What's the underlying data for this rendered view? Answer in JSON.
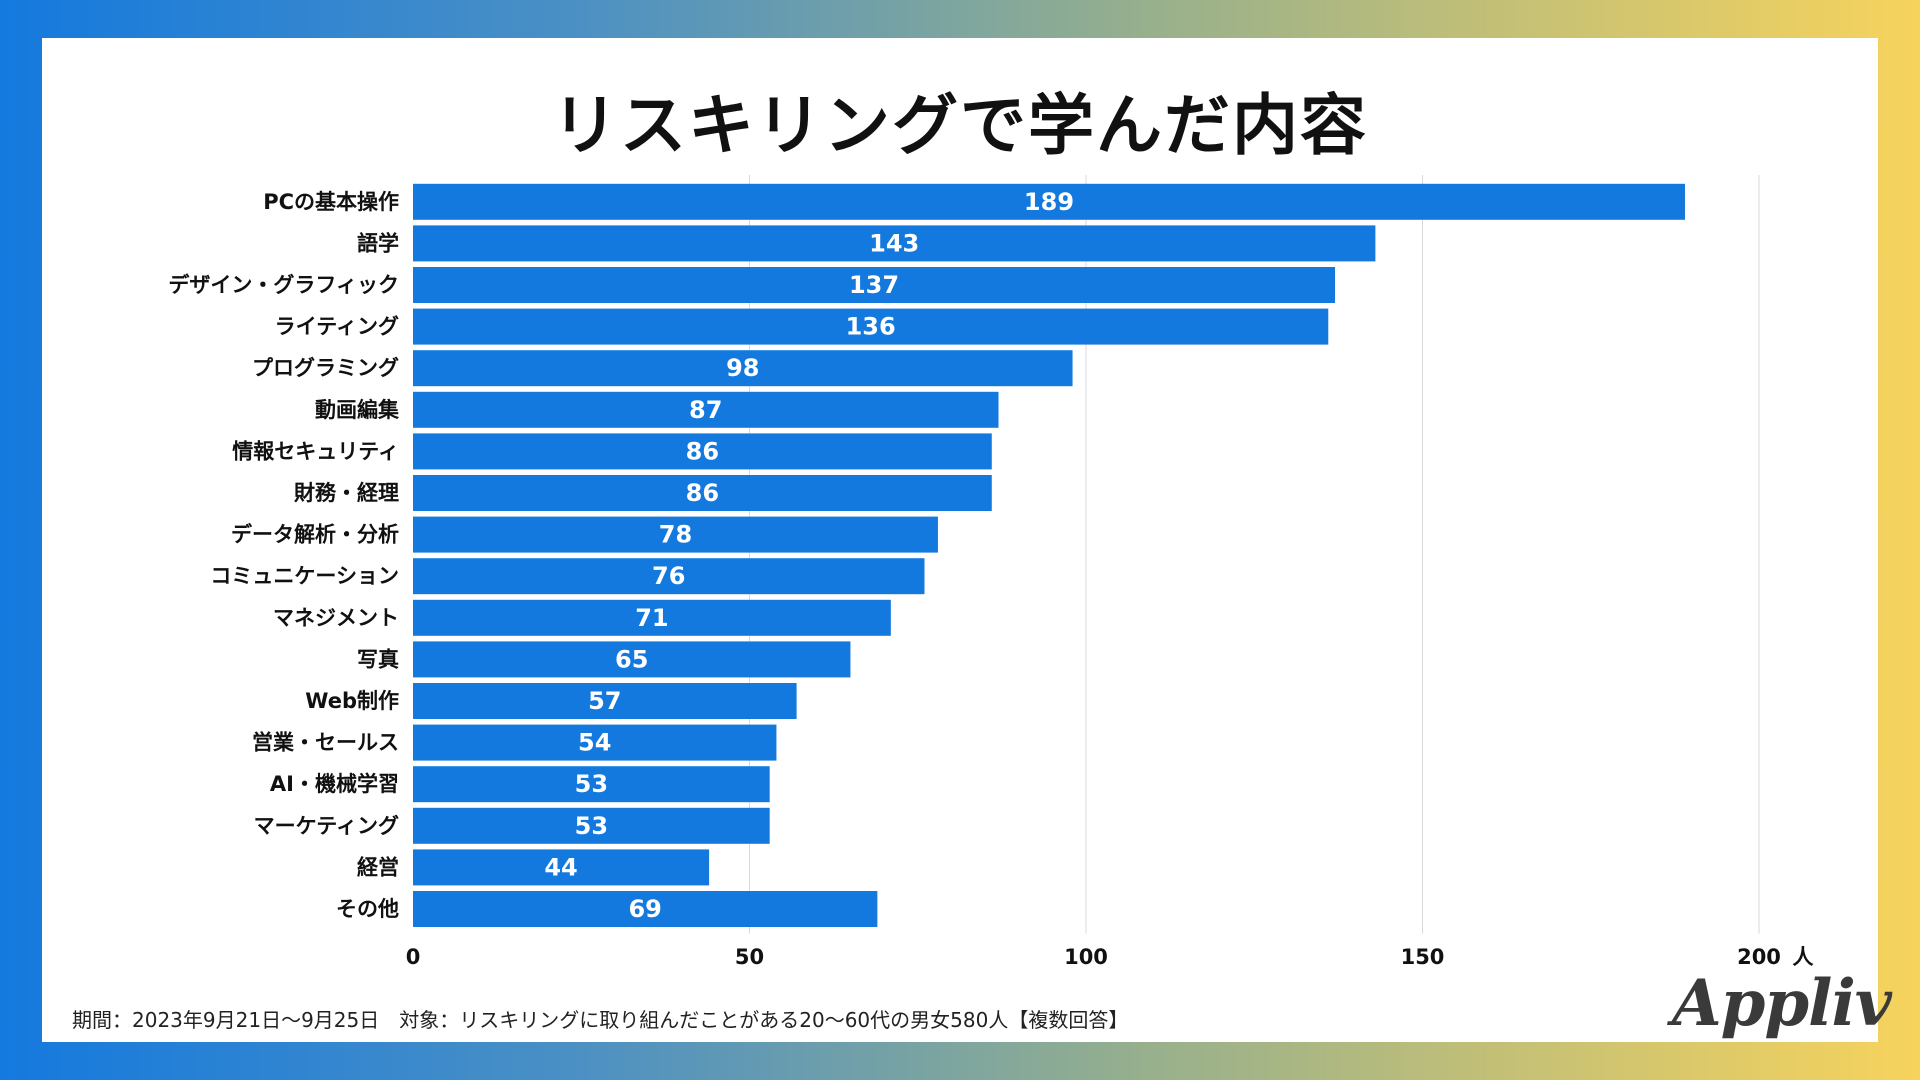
{
  "footer_text": "期間：2023年9月21日〜9月25日　対象：リスキリングに取り組んだことがある20〜60代の男女580人【複数回答】",
  "logo_text": "Appliv",
  "colors": {
    "bar": "#1479de",
    "bar_label": "#ffffff",
    "grid": "#d9d9d9",
    "text": "#111111"
  },
  "chart_data": {
    "type": "bar",
    "orientation": "horizontal",
    "title": "リスキリングで学んだ内容",
    "categories": [
      "PCの基本操作",
      "語学",
      "デザイン・グラフィック",
      "ライティング",
      "プログラミング",
      "動画編集",
      "情報セキュリティ",
      "財務・経理",
      "データ解析・分析",
      "コミュニケーション",
      "マネジメント",
      "写真",
      "Web制作",
      "営業・セールス",
      "AI・機械学習",
      "マーケティング",
      "経営",
      "その他"
    ],
    "values": [
      189,
      143,
      137,
      136,
      98,
      87,
      86,
      86,
      78,
      76,
      71,
      65,
      57,
      54,
      53,
      53,
      44,
      69
    ],
    "xlim": [
      0,
      200
    ],
    "xticks": [
      0,
      50,
      100,
      150,
      200
    ],
    "xunit": "人",
    "grid": true
  }
}
